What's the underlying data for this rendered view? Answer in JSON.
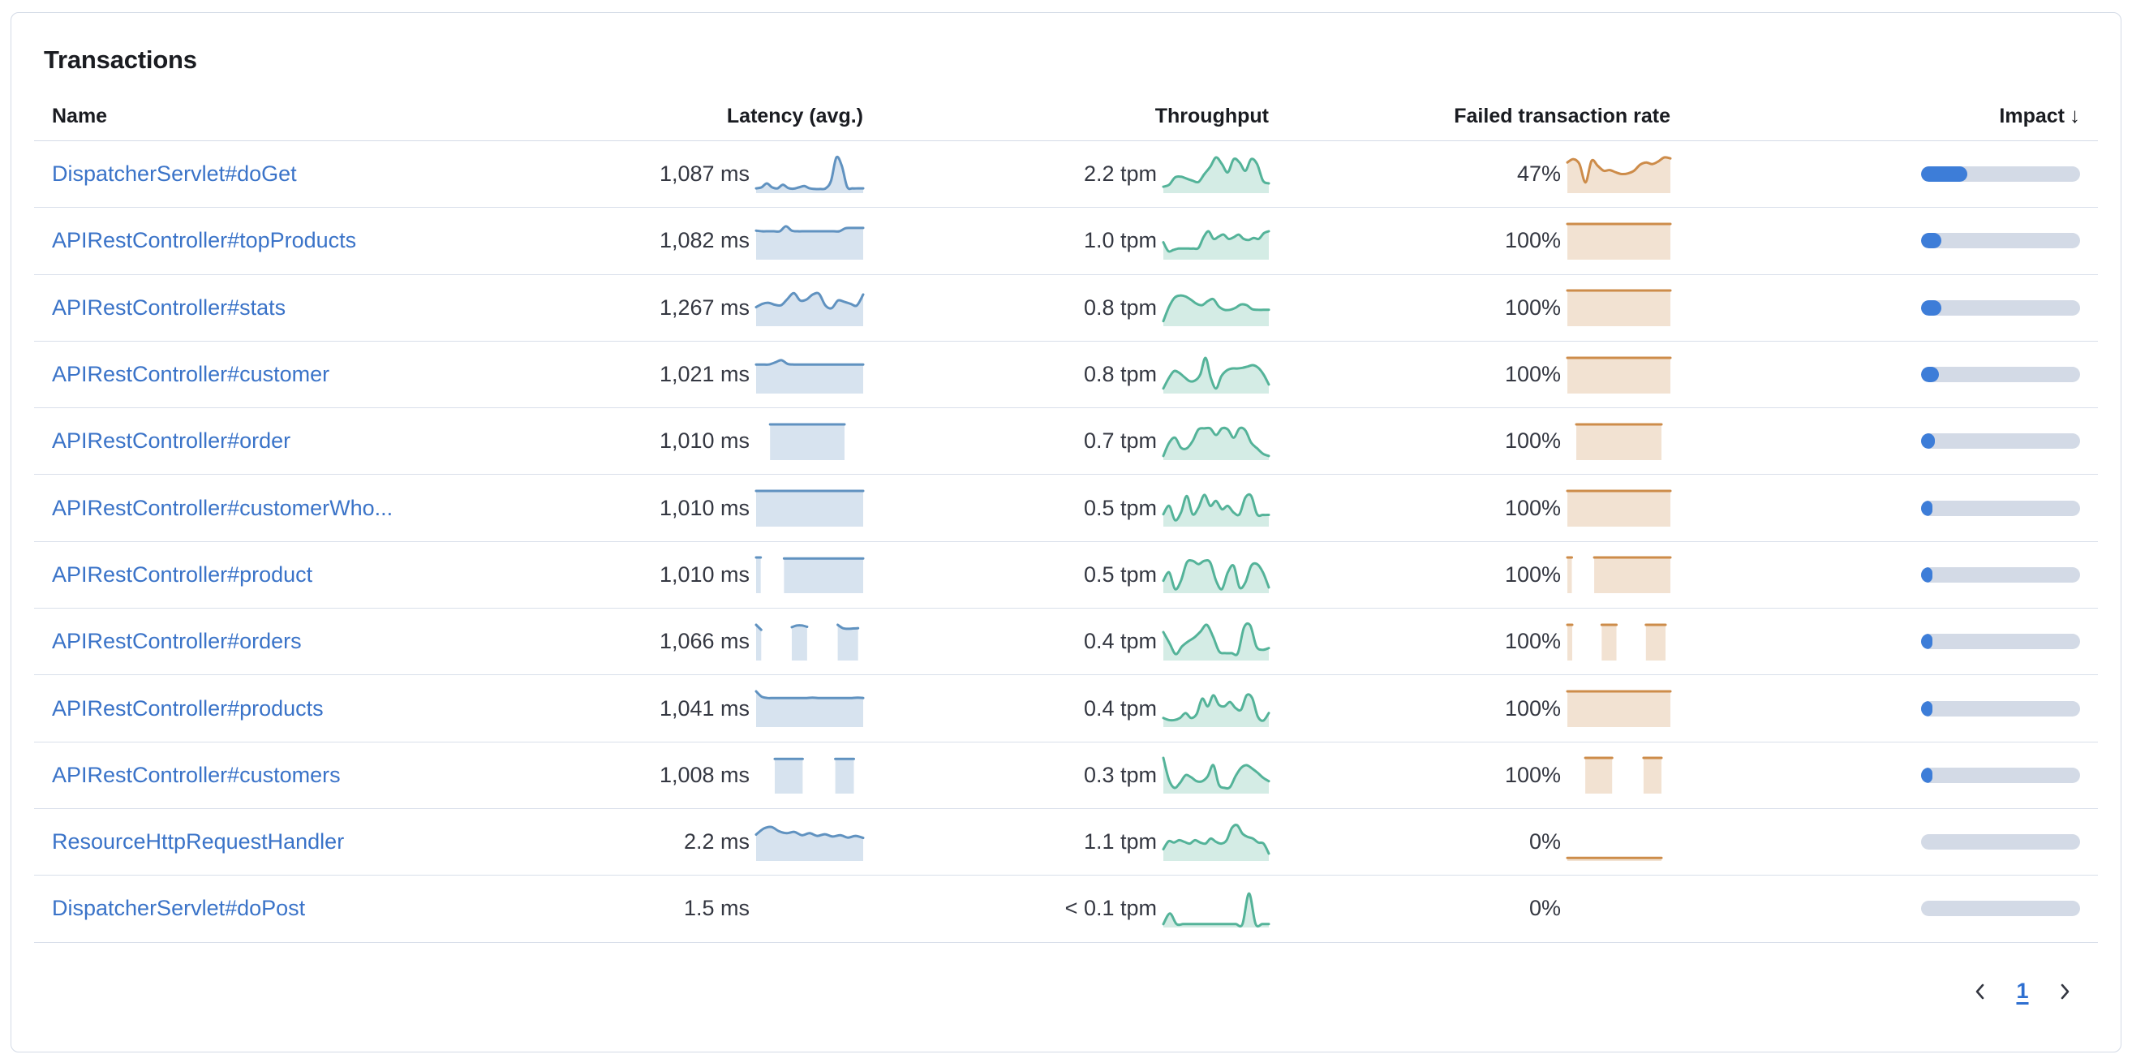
{
  "card": {
    "title": "Transactions"
  },
  "table": {
    "columns": {
      "name": "Name",
      "latency": "Latency (avg.)",
      "throughput": "Throughput",
      "failed": "Failed transaction rate",
      "impact": "Impact"
    },
    "sort_icon": "↓",
    "rows": [
      {
        "name": "DispatcherServlet#doGet",
        "latency": "1,087 ms",
        "throughput": "2.2 tpm",
        "failed": "47%",
        "impact_pct": 29,
        "latency_spark": [
          0.07,
          0.1,
          0.22,
          0.1,
          0.07,
          0.18,
          0.08,
          0.06,
          0.1,
          0.14,
          0.07,
          0.05,
          0.05,
          0.07,
          0.3,
          1,
          0.75,
          0.12,
          0.07,
          0.07,
          0.07
        ],
        "throughput_spark": [
          0.12,
          0.18,
          0.4,
          0.42,
          0.36,
          0.3,
          0.26,
          0.5,
          0.72,
          1,
          0.8,
          0.55,
          0.95,
          0.85,
          0.6,
          0.95,
          0.8,
          0.3,
          0.22
        ],
        "failed_spark": [
          0.85,
          0.95,
          0.8,
          0.25,
          0.9,
          0.75,
          0.6,
          0.62,
          0.55,
          0.5,
          0.52,
          0.6,
          0.78,
          0.85,
          0.8,
          0.88,
          1,
          0.97
        ]
      },
      {
        "name": "APIRestController#topProducts",
        "latency": "1,082 ms",
        "throughput": "1.0 tpm",
        "failed": "100%",
        "impact_pct": 13,
        "latency_spark": [
          0.8,
          0.78,
          0.78,
          0.78,
          0.78,
          0.93,
          0.8,
          0.78,
          0.78,
          0.78,
          0.78,
          0.78,
          0.78,
          0.78,
          0.78,
          0.87,
          0.88,
          0.88,
          0.88
        ],
        "throughput_spark": [
          0.45,
          0.18,
          0.22,
          0.26,
          0.26,
          0.26,
          0.26,
          0.28,
          0.6,
          0.78,
          0.55,
          0.62,
          0.68,
          0.55,
          0.6,
          0.68,
          0.55,
          0.52,
          0.58,
          0.55,
          0.72,
          0.78
        ],
        "failed_spark": [
          1,
          1,
          1,
          1,
          1,
          1,
          1,
          1,
          1,
          1,
          1,
          1,
          1,
          1,
          1,
          1,
          1,
          1,
          1,
          1,
          1,
          1,
          1,
          1
        ]
      },
      {
        "name": "APIRestController#stats",
        "latency": "1,267 ms",
        "throughput": "0.8 tpm",
        "failed": "100%",
        "impact_pct": 13,
        "latency_spark": [
          0.5,
          0.6,
          0.63,
          0.57,
          0.56,
          0.75,
          0.92,
          0.7,
          0.73,
          0.88,
          0.9,
          0.55,
          0.47,
          0.7,
          0.66,
          0.6,
          0.55,
          0.88
        ],
        "throughput_spark": [
          0.08,
          0.5,
          0.78,
          0.85,
          0.82,
          0.72,
          0.6,
          0.56,
          0.68,
          0.74,
          0.52,
          0.42,
          0.42,
          0.48,
          0.58,
          0.56,
          0.44,
          0.42,
          0.42,
          0.42
        ],
        "failed_spark": [
          1,
          1,
          1,
          1,
          1,
          1,
          1,
          1,
          1,
          1,
          1,
          1,
          1,
          1,
          1,
          1,
          1,
          1,
          1,
          1,
          1,
          1,
          1,
          1
        ]
      },
      {
        "name": "APIRestController#customer",
        "latency": "1,021 ms",
        "throughput": "0.8 tpm",
        "failed": "100%",
        "impact_pct": 11,
        "latency_spark": [
          0.8,
          0.8,
          0.8,
          0.86,
          0.93,
          0.82,
          0.8,
          0.8,
          0.8,
          0.8,
          0.8,
          0.8,
          0.8,
          0.8,
          0.8,
          0.8,
          0.8,
          0.8
        ],
        "throughput_spark": [
          0.08,
          0.38,
          0.6,
          0.55,
          0.42,
          0.3,
          0.32,
          0.5,
          1,
          0.4,
          0.08,
          0.45,
          0.62,
          0.68,
          0.68,
          0.7,
          0.74,
          0.78,
          0.7,
          0.5,
          0.2
        ],
        "failed_spark": [
          1,
          1,
          1,
          1,
          1,
          1,
          1,
          1,
          1,
          1,
          1,
          1,
          1,
          1,
          1,
          1,
          1,
          1,
          1,
          1,
          1,
          1,
          1,
          1
        ]
      },
      {
        "name": "APIRestController#order",
        "latency": "1,010 ms",
        "throughput": "0.7 tpm",
        "failed": "100%",
        "impact_pct": 8.5,
        "latency_spark": [
          null,
          null,
          null,
          1,
          1,
          1,
          1,
          1,
          1,
          1,
          1,
          1,
          1,
          1,
          1,
          1,
          1,
          1,
          1,
          1,
          null,
          null,
          null,
          null
        ],
        "throughput_spark": [
          0.05,
          0.45,
          0.6,
          0.3,
          0.28,
          0.5,
          0.85,
          0.88,
          0.88,
          0.68,
          0.88,
          0.85,
          0.6,
          0.88,
          0.82,
          0.45,
          0.28,
          0.12,
          0.05
        ],
        "failed_spark": [
          null,
          null,
          1,
          1,
          1,
          1,
          1,
          1,
          1,
          1,
          1,
          1,
          1,
          1,
          1,
          1,
          1,
          1,
          1,
          1,
          1,
          1,
          null,
          null
        ]
      },
      {
        "name": "APIRestController#customerWho...",
        "latency": "1,010 ms",
        "throughput": "0.5 tpm",
        "failed": "100%",
        "impact_pct": 7,
        "latency_spark": [
          1,
          1,
          1,
          1,
          1,
          1,
          1,
          1,
          1,
          1,
          1,
          1,
          1,
          1,
          1,
          1,
          1,
          1,
          1,
          1,
          1,
          1,
          1,
          1
        ],
        "throughput_spark": [
          0.3,
          0.55,
          0.12,
          0.35,
          0.85,
          0.3,
          0.5,
          0.88,
          0.55,
          0.7,
          0.45,
          0.55,
          0.35,
          0.3,
          0.8,
          0.85,
          0.3,
          0.28,
          0.28
        ],
        "failed_spark": [
          1,
          1,
          1,
          1,
          1,
          1,
          1,
          1,
          1,
          1,
          1,
          1,
          1,
          1,
          1,
          1,
          1,
          1,
          1,
          1,
          1,
          1,
          1,
          1
        ]
      },
      {
        "name": "APIRestController#product",
        "latency": "1,010 ms",
        "throughput": "0.5 tpm",
        "failed": "100%",
        "impact_pct": 6.5,
        "latency_spark": [
          1,
          1,
          null,
          null,
          null,
          null,
          0.97,
          0.97,
          0.97,
          0.97,
          0.97,
          0.97,
          0.97,
          0.97,
          0.97,
          0.97,
          0.97,
          0.97,
          0.97,
          0.97,
          0.97,
          0.97,
          0.97,
          0.97
        ],
        "throughput_spark": [
          0.3,
          0.55,
          0.05,
          0.3,
          0.85,
          0.9,
          0.8,
          0.9,
          0.85,
          0.3,
          0.05,
          0.55,
          0.75,
          0.1,
          0.25,
          0.75,
          0.8,
          0.55,
          0.1
        ],
        "failed_spark": [
          1,
          1,
          null,
          null,
          null,
          null,
          1,
          1,
          1,
          1,
          1,
          1,
          1,
          1,
          1,
          1,
          1,
          1,
          1,
          1,
          1,
          1,
          1,
          1
        ]
      },
      {
        "name": "APIRestController#orders",
        "latency": "1,066 ms",
        "throughput": "0.4 tpm",
        "failed": "100%",
        "impact_pct": 5.5,
        "latency_spark": [
          1,
          0.85,
          null,
          null,
          null,
          null,
          null,
          0.93,
          0.98,
          0.98,
          0.94,
          null,
          null,
          null,
          null,
          null,
          1,
          0.9,
          0.88,
          0.89,
          0.9,
          null
        ],
        "throughput_spark": [
          0.78,
          0.45,
          0.12,
          0.35,
          0.5,
          0.62,
          0.8,
          1,
          0.65,
          0.2,
          0.15,
          0.15,
          0.15,
          0.92,
          0.98,
          0.35,
          0.25,
          0.3
        ],
        "failed_spark": [
          1,
          1,
          null,
          null,
          null,
          null,
          null,
          1,
          1,
          1,
          1,
          null,
          null,
          null,
          null,
          null,
          1,
          1,
          1,
          1,
          1,
          null
        ]
      },
      {
        "name": "APIRestController#products",
        "latency": "1,041 ms",
        "throughput": "0.4 tpm",
        "failed": "100%",
        "impact_pct": 5.5,
        "latency_spark": [
          1,
          0.84,
          0.8,
          0.8,
          0.8,
          0.8,
          0.8,
          0.8,
          0.8,
          0.8,
          0.81,
          0.8,
          0.8,
          0.8,
          0.8,
          0.8,
          0.8,
          0.8,
          0.81,
          0.8
        ],
        "throughput_spark": [
          0.2,
          0.14,
          0.14,
          0.2,
          0.35,
          0.2,
          0.32,
          0.78,
          0.55,
          0.88,
          0.6,
          0.55,
          0.68,
          0.5,
          0.45,
          0.88,
          0.8,
          0.25,
          0.12,
          0.35
        ],
        "failed_spark": [
          1,
          1,
          1,
          1,
          1,
          1,
          1,
          1,
          1,
          1,
          1,
          1,
          1,
          1,
          1,
          1,
          1,
          1,
          1,
          1,
          1,
          1,
          1,
          1
        ]
      },
      {
        "name": "APIRestController#customers",
        "latency": "1,008 ms",
        "throughput": "0.3 tpm",
        "failed": "100%",
        "impact_pct": 5,
        "latency_spark": [
          null,
          null,
          null,
          null,
          0.97,
          0.97,
          0.97,
          0.97,
          0.97,
          0.97,
          0.97,
          null,
          null,
          null,
          null,
          null,
          null,
          0.97,
          0.97,
          0.97,
          0.97,
          0.97,
          null,
          null
        ],
        "throughput_spark": [
          1,
          0.35,
          0.1,
          0.25,
          0.48,
          0.42,
          0.3,
          0.3,
          0.45,
          0.78,
          0.2,
          0.1,
          0.12,
          0.45,
          0.7,
          0.78,
          0.68,
          0.55,
          0.4,
          0.3
        ],
        "failed_spark": [
          null,
          null,
          null,
          null,
          1,
          1,
          1,
          1,
          1,
          1,
          1,
          null,
          null,
          null,
          null,
          null,
          null,
          1,
          1,
          1,
          1,
          1,
          null,
          null
        ]
      },
      {
        "name": "ResourceHttpRequestHandler",
        "latency": "2.2 ms",
        "throughput": "1.1 tpm",
        "failed": "0%",
        "impact_pct": 0,
        "latency_spark": [
          0.72,
          0.9,
          0.95,
          0.82,
          0.76,
          0.8,
          0.7,
          0.76,
          0.68,
          0.73,
          0.66,
          0.7,
          0.63,
          0.68,
          0.62
        ],
        "throughput_spark": [
          0.28,
          0.52,
          0.48,
          0.55,
          0.5,
          0.45,
          0.55,
          0.48,
          0.45,
          0.6,
          0.5,
          0.45,
          0.55,
          0.92,
          1,
          0.75,
          0.65,
          0.6,
          0.48,
          0.45,
          0.15
        ],
        "failed_spark": [
          0.02,
          0.02,
          0.02,
          0.02,
          0.02,
          0.02,
          0.02,
          0.02,
          0.02,
          0.02,
          0.02,
          0.02,
          0.02,
          0.02,
          0.02,
          0.02,
          0.02,
          0.02,
          0.02,
          0.02,
          0.02,
          0.02,
          null,
          null
        ]
      },
      {
        "name": "DispatcherServlet#doPost",
        "latency": "1.5 ms",
        "throughput": "< 0.1 tpm",
        "failed": "0%",
        "impact_pct": 0,
        "latency_spark": [],
        "throughput_spark": [
          0.03,
          0.35,
          0.03,
          0.03,
          0.03,
          0.03,
          0.03,
          0.03,
          0.03,
          0.03,
          0.03,
          0.03,
          0.03,
          0.95,
          0.03,
          0.03,
          0.03
        ],
        "failed_spark": []
      }
    ]
  },
  "pagination": {
    "current_page": "1"
  },
  "colors": {
    "latency_line": "#6092c0",
    "latency_fill": "#d7e3ef",
    "throughput_line": "#54b399",
    "throughput_fill": "#d4ece5",
    "failed_line": "#cd8c4a",
    "failed_fill": "#f2e2d2",
    "impact_fill": "#3d7dd8",
    "impact_track": "#d3dae6",
    "link": "#3a73c8",
    "chevron": "#343741"
  }
}
